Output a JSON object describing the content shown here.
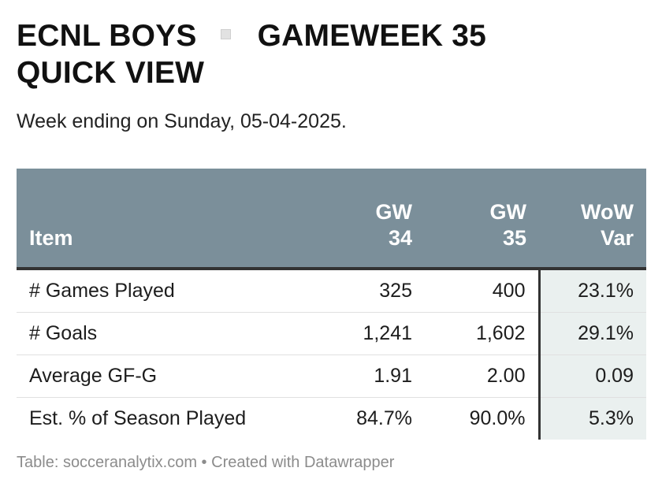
{
  "header": {
    "title_part1": "ECNL BOYS",
    "title_part2": "GAMEWEEK 35",
    "title_line2": "QUICK VIEW",
    "subtitle": "Week ending on Sunday, 05-04-2025."
  },
  "footer": {
    "source_prefix": "Table: ",
    "source": "socceranalytix.com",
    "separator": " • ",
    "created_with": "Created with Datawrapper"
  },
  "colors": {
    "header_bg": "#7b8f9a",
    "highlight_col_bg": "#eaf0ef"
  },
  "chart_data": {
    "type": "table",
    "title": "ECNL BOYS GAMEWEEK 35 QUICK VIEW",
    "subtitle": "Week ending on Sunday, 05-04-2025.",
    "columns": [
      {
        "line1": "Item",
        "line2": ""
      },
      {
        "line1": "GW",
        "line2": "34"
      },
      {
        "line1": "GW",
        "line2": "35"
      },
      {
        "line1": "WoW",
        "line2": "Var"
      }
    ],
    "rows": [
      {
        "item": "# Games Played",
        "gw34": "325",
        "gw35": "400",
        "wow": "23.1%"
      },
      {
        "item": "# Goals",
        "gw34": "1,241",
        "gw35": "1,602",
        "wow": "29.1%"
      },
      {
        "item": "Average GF-G",
        "gw34": "1.91",
        "gw35": "2.00",
        "wow": "0.09"
      },
      {
        "item": "Est. % of Season Played",
        "gw34": "84.7%",
        "gw35": "90.0%",
        "wow": "5.3%"
      }
    ]
  }
}
